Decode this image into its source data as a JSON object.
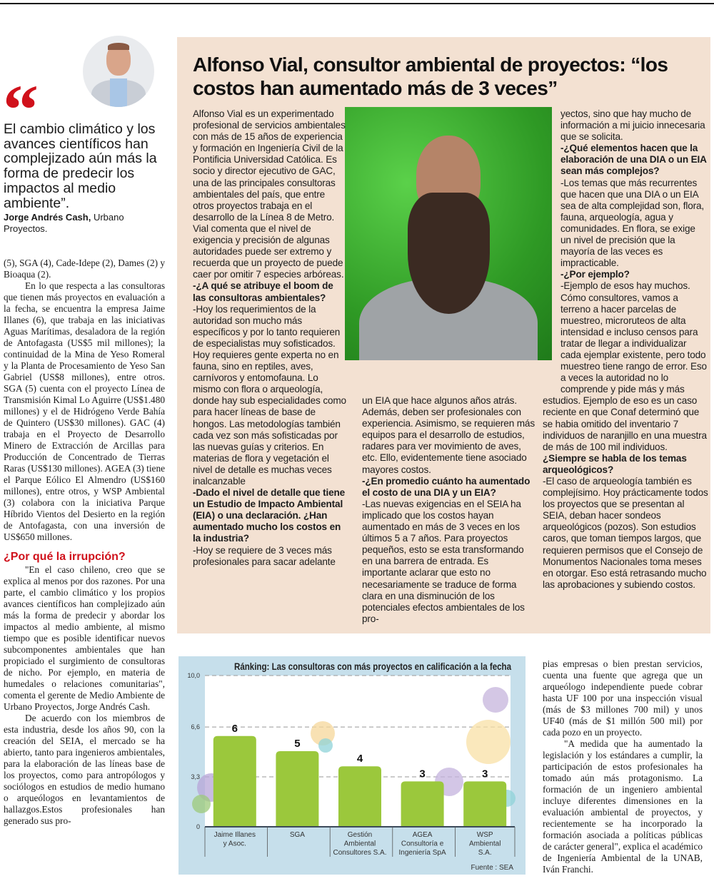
{
  "sidebar_quote": {
    "text": "El cambio climático y los avances científicos han complejizado aún más la forma de predecir los impactos al medio ambiente”.",
    "author": "Jorge Andrés Cash,",
    "affiliation": "Urbano Proyectos."
  },
  "left_column": {
    "paragraphs": [
      {
        "text": "(5), SGA (4), Cade-Idepe (2), Dames (2) y Bioaqua (2).",
        "indent": false
      },
      {
        "text": "En lo que respecta a las consultoras que tienen más proyectos en evaluación a la fecha, se encuentra la empresa Jaime Illanes (6), que trabaja en las iniciativas Aguas Marítimas, desaladora de la región de Antofagasta (US$5 mil millones); la continuidad de la Mina de Yeso Romeral y la Planta de Procesamiento de Yeso San Gabriel (US$8 millones), entre otros. SGA (5) cuenta con el proyecto Línea de Transmisión Kimal Lo Aguirre (US$1.480 millones) y el de Hidrógeno Verde Bahía de Quintero (US$30 millones). GAC (4) trabaja en el Proyecto de Desarrollo Minero de Extracción de Arcillas para Producción de Concentrado de Tierras Raras (US$130 millones). AGEA (3) tiene el Parque Eólico El Almendro (US$160 millones), entre otros, y WSP Ambiental (3) colabora con la iniciativa Parque Híbrido Vientos del Desierto en la región de Antofagasta, con una inversión de US$650 millones.",
        "indent": true
      }
    ],
    "heading": "¿Por qué la irrupción?",
    "paragraphs_after": [
      {
        "text": "\"En el caso chileno, creo que se explica al menos por dos razones. Por una parte, el cambio climático y los propios avances científicos han complejizado aún más la forma de predecir y abordar los impactos al medio ambiente, al mismo tiempo que es posible identificar nuevos subcomponentes ambientales que han propiciado el surgimiento de consultoras de nicho. Por ejemplo, en materia de humedales o relaciones comunitarias\", comenta el gerente de Medio Ambiente de Urbano Proyectos, Jorge Andrés Cash."
      },
      {
        "text": "De acuerdo con los miembros de esta industria, desde los años 90, con la creación del SEIA, el mercado se ha abierto, tanto para ingenieros ambientales, para la elaboración de las líneas base de los proyectos, como para antropólogos y sociólogos en estudios de medio humano o arqueólogos en levantamientos de hallazgos.Estos profesionales han generado sus pro-"
      }
    ]
  },
  "interview_box": {
    "title": "Alfonso Vial, consultor ambiental de proyectos: “los costos han aumentado más de 3 veces”",
    "columns": [
      [
        {
          "text": "Alfonso Vial es un experimentado profesional de servicios ambientales con más de 15 años de experiencia y formación en Ingeniería Civil de la Pontificia Universidad Católica. Es socio y director ejecutivo de GAC, una de las principales consultoras ambientales del país, que entre otros proyectos trabaja en el desarrollo de la Línea 8 de Metro.",
          "bold": false
        },
        {
          "text": "Vial comenta que el nivel de exigencia y precisión de algunas autoridades puede ser extremo y recuerda que un proyecto de puede caer por omitir 7 especies arbóreas.",
          "bold": false
        },
        {
          "text": "-¿A qué se atribuye el boom de las consultoras ambientales?",
          "bold": true
        },
        {
          "text": "-Hoy los requerimientos de la autoridad son mucho más específicos y por lo tanto requieren de especialistas muy sofisticados. Hoy requieres gente experta no en fauna, sino en reptiles, aves, carnívoros y entomofauna. Lo mismo con flora o arqueología, donde hay sub especialidades como para hacer líneas de base de hongos. Las metodologías también cada vez son más sofisticadas por las nuevas guías y criterios. En materias de flora y vegetación el nivel de detalle es muchas veces inalcanzable",
          "bold": false
        },
        {
          "text": "-Dado el nivel de detalle que tiene un Estudio de Impacto Ambiental (EIA) o una declaración. ¿Han aumentado mucho los costos en la industria?",
          "bold": true
        },
        {
          "text": "-Hoy se requiere de 3 veces más profesionales para sacar adelante",
          "bold": false
        }
      ],
      [
        {
          "text": "un EIA que hace algunos años atrás. Además, deben ser profesionales con experiencia. Asimismo, se requieren más equipos para el desarrollo de estudios, radares para ver movimiento de aves, etc. Ello, evidentemente tiene asociado mayores costos.",
          "bold": false
        },
        {
          "text": "-¿En promedio cuánto ha aumentado el costo de una DIA y un EIA?",
          "bold": true
        },
        {
          "text": "-Las nuevas exigencias en el SEIA ha implicado que los costos hayan aumentado en más de 3 veces en los últimos 5 a 7 años. Para proyectos pequeños, esto se esta transformando en una barrera de entrada. Es importante aclarar que esto no necesariamente se traduce de forma clara en una disminución de los potenciales efectos ambientales de los pro-",
          "bold": false
        }
      ],
      [
        {
          "text": "yectos, sino que hay mucho de información a mi juicio innecesaria que se solicita.",
          "bold": false
        },
        {
          "text": "-¿Qué elementos hacen que la elaboración de una DIA o un EIA sean más complejos?",
          "bold": true
        },
        {
          "text": "-Los temas que más recurrentes que hacen que una DIA o un EIA sea de alta complejidad son, flora, fauna, arqueología, agua y comunidades. En flora, se exige un nivel de precisión que la mayoría de las veces es impracticable.",
          "bold": false
        },
        {
          "text": "-¿Por ejemplo?",
          "bold": true
        },
        {
          "text": "-Ejemplo de esos hay muchos. Cómo consultores, vamos a terreno a hacer parcelas de muestreo, microruteos de alta intensidad e incluso censos para tratar de llegar a individualizar cada ejemplar existente, pero todo muestreo tiene rango de error. Eso a veces la autoridad no lo comprende y pide más y más estudios. Ejemplo de eso es un caso reciente en que Conaf determinó que se habia omitido del inventario 7 individuos de naranjillo en una muestra de más de 100 mil individuos.",
          "bold": false
        },
        {
          "text": "¿Siempre se habla de los temas arqueológicos?",
          "bold": true
        },
        {
          "text": "-El caso de arqueología también es complejísimo. Hoy prácticamente todos los proyectos que se presentan al SEIA, deban hacer sondeos arqueológicos (pozos). Son estudios caros, que toman tiempos largos, que requieren permisos que el Consejo de Monumentos Nacionales toma meses en otorgar. Eso está retrasando mucho las aprobaciones y subiendo costos.",
          "bold": false
        }
      ]
    ]
  },
  "right_column": {
    "paragraphs": [
      {
        "text": "pias empresas o bien prestan servicios, cuenta una fuente que agrega que un arqueólogo independiente puede cobrar hasta UF 100 por una inspección visual (más de $3 millones 700 mil) y unos UF40 (más de $1 millón 500 mil) por cada pozo en un proyecto.",
        "indent": false
      },
      {
        "text": "\"A medida que ha aumentado la legislación y los estándares a cumplir, la participación de estos profesionales ha tomado aún más protagonismo. La formación de un ingeniero ambiental incluye diferentes dimensiones en la evaluación ambiental de proyectos, y recientemente se ha incorporado la formación asociada a políticas públicas de carácter general\", explica el académico de Ingeniería Ambiental de la UNAB, Iván Franchi.",
        "indent": true
      }
    ]
  },
  "chart_data": {
    "type": "bar",
    "title": "Ránking: Las consultoras con más proyectos en calificación a la fecha",
    "categories": [
      [
        "Jaime Illanes",
        "y Asoc."
      ],
      [
        "SGA"
      ],
      [
        "Gestión",
        "Ambiental",
        "Consultores S.A."
      ],
      [
        "AGEA",
        "Consultoría e",
        "Ingeniería SpA"
      ],
      [
        "WSP",
        "Ambiental",
        "S.A."
      ]
    ],
    "values": [
      6,
      5,
      4,
      3,
      3
    ],
    "data_labels": [
      "6",
      "5",
      "4",
      "3",
      "3"
    ],
    "ylim": [
      0,
      10
    ],
    "yticks": [
      0,
      3.3,
      6.6,
      10
    ],
    "ytick_labels": [
      "0",
      "3,3",
      "6,6",
      "10,0"
    ],
    "grid": "dashed horizontal",
    "source": "Fuente : SEA",
    "colors": {
      "bar": "#9bc83c",
      "background": "#c6dfeb",
      "plot": "#ffffff"
    }
  }
}
